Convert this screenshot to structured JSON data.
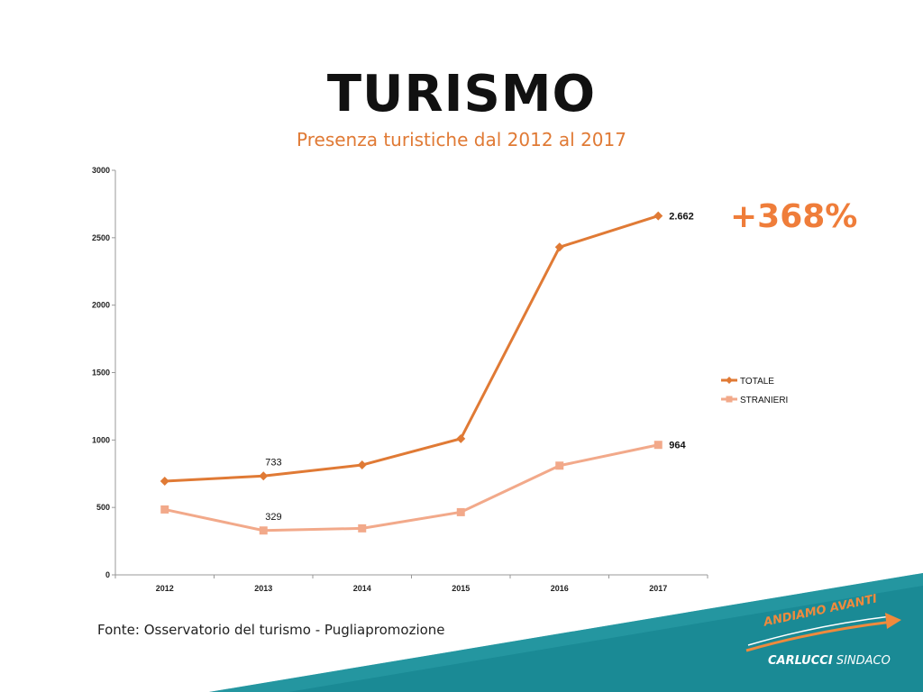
{
  "header": {
    "title": "TURISMO",
    "subtitle": "Presenza turistiche dal 2012 al 2017"
  },
  "highlight": "+368%",
  "source": "Fonte: Osservatorio del turismo - Pugliapromozione",
  "footer": {
    "slogan": "ANDIAMO AVANTI",
    "candidate_name": "CARLUCCI",
    "candidate_role": "SINDACO"
  },
  "colors": {
    "totale": "#e07a35",
    "stranieri": "#f2a98a",
    "accent": "#ef7d3a",
    "teal": "#1a8a95"
  },
  "chart_data": {
    "type": "line",
    "title": "",
    "xlabel": "",
    "ylabel": "",
    "categories": [
      "2012",
      "2013",
      "2014",
      "2015",
      "2016",
      "2017"
    ],
    "ylim": [
      0,
      3000
    ],
    "yticks": [
      "0",
      "500",
      "1000",
      "1500",
      "2000",
      "2500",
      "3000"
    ],
    "grid": false,
    "legend_position": "right",
    "series": [
      {
        "name": "TOTALE",
        "values": [
          695,
          733,
          815,
          1010,
          2430,
          2662
        ],
        "marker": "diamond"
      },
      {
        "name": "STRANIERI",
        "values": [
          485,
          329,
          345,
          465,
          810,
          964
        ],
        "marker": "square"
      }
    ],
    "annotations": [
      {
        "series": "TOTALE",
        "index": 1,
        "text": "733"
      },
      {
        "series": "TOTALE",
        "index": 5,
        "text": "2.662"
      },
      {
        "series": "STRANIERI",
        "index": 1,
        "text": "329"
      },
      {
        "series": "STRANIERI",
        "index": 5,
        "text": "964"
      }
    ]
  }
}
